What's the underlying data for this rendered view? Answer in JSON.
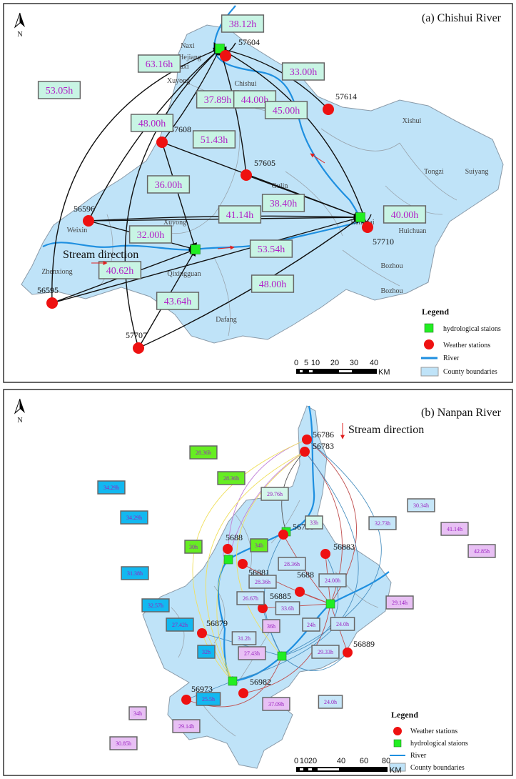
{
  "panel_a": {
    "title": "(a) Chishui River",
    "north": "N",
    "stream_direction": "Stream direction",
    "places": [
      "Naxi",
      "Hejiang",
      "Naxi",
      "Xuyong",
      "Chishui",
      "Xishui",
      "Tongzi",
      "Suiyang",
      "Gulin",
      "Xuyong",
      "Weixin",
      "Renhuai",
      "Huichuan",
      "Zhenxiong",
      "Qixingguan",
      "Bozhou",
      "Bozhou",
      "Dafang"
    ],
    "weather_stations": [
      "57604",
      "57614",
      "57608",
      "57605",
      "56596",
      "57710",
      "56595",
      "57707"
    ],
    "time_labels": [
      "38.12h",
      "63.16h",
      "53.05h",
      "33.00h",
      "37.89h",
      "44.00h",
      "45.00h",
      "48.00h",
      "51.43h",
      "36.00h",
      "38.40h",
      "41.14h",
      "40.00h",
      "32.00h",
      "53.54h",
      "40.62h",
      "48.00h",
      "43.64h"
    ],
    "legend": {
      "title": "Legend",
      "items": [
        "hydrological staions",
        "Weather stations",
        "River",
        "County boundaries"
      ]
    },
    "scale": {
      "ticks": [
        "0",
        "5",
        "10",
        "20",
        "30",
        "40"
      ],
      "unit": "KM"
    }
  },
  "panel_b": {
    "title": "(b) Nanpan River",
    "north": "N",
    "stream_direction": "Stream direction",
    "weather_stations": [
      "56786",
      "56783",
      "56788",
      "5688",
      "56881",
      "56883",
      "5688",
      "56885",
      "56879",
      "56889",
      "56973",
      "56982"
    ],
    "time_labels": [
      {
        "text": "28.36h",
        "color": "#66ee22"
      },
      {
        "text": "28.36h",
        "color": "#66ee22"
      },
      {
        "text": "34.29h",
        "color": "#12b8f0"
      },
      {
        "text": "34.29h",
        "color": "#12b8f0"
      },
      {
        "text": "30h",
        "color": "#66ee22"
      },
      {
        "text": "34h",
        "color": "#66ee22"
      },
      {
        "text": "31.38h",
        "color": "#12b8f0"
      },
      {
        "text": "29.76h",
        "color": "#d4f6ea"
      },
      {
        "text": "33h",
        "color": "#d4f6ea"
      },
      {
        "text": "32.73h",
        "color": "#c6e6f8"
      },
      {
        "text": "30.34h",
        "color": "#c6e6f8"
      },
      {
        "text": "41.14h",
        "color": "#e8c0f4"
      },
      {
        "text": "42.85h",
        "color": "#e8c0f4"
      },
      {
        "text": "28.36h",
        "color": "#c6e6f8"
      },
      {
        "text": "24.00h",
        "color": "#c6e6f8"
      },
      {
        "text": "28.36h",
        "color": "#c6e6f8"
      },
      {
        "text": "26.67h",
        "color": "#c6e6f8"
      },
      {
        "text": "33.6h",
        "color": "#c6e6f8"
      },
      {
        "text": "29.14h",
        "color": "#e8c0f4"
      },
      {
        "text": "32.57h",
        "color": "#12b8f0"
      },
      {
        "text": "36h",
        "color": "#e8c0f4"
      },
      {
        "text": "24h",
        "color": "#c6e6f8"
      },
      {
        "text": "24.0h",
        "color": "#c6e6f8"
      },
      {
        "text": "27.42h",
        "color": "#12b8f0"
      },
      {
        "text": "31.2h",
        "color": "#c6e6f8"
      },
      {
        "text": "29.33h",
        "color": "#c6e6f8"
      },
      {
        "text": "32h",
        "color": "#12b8f0"
      },
      {
        "text": "27.43h",
        "color": "#e8c0f4"
      },
      {
        "text": "25.5h",
        "color": "#12b8f0"
      },
      {
        "text": "37.09h",
        "color": "#e8c0f4"
      },
      {
        "text": "24.0h",
        "color": "#c6e6f8"
      },
      {
        "text": "34h",
        "color": "#e8c0f4"
      },
      {
        "text": "29.14h",
        "color": "#e8c0f4"
      },
      {
        "text": "30.85h",
        "color": "#e8c0f4"
      }
    ],
    "legend": {
      "title": "Legend",
      "items": [
        "Weather stations",
        "hydrological staions",
        "River",
        "County boundaries"
      ]
    },
    "scale": {
      "ticks": [
        "0",
        "10",
        "20",
        "40",
        "60",
        "80"
      ],
      "unit": "KM"
    }
  },
  "colors": {
    "hydro": "#22ee22",
    "weather": "#ee1111",
    "river": "#1e8fe0",
    "county": "#bfe3f8",
    "label_a": "#c8f4e4",
    "stream_arrow": "#e02020"
  }
}
